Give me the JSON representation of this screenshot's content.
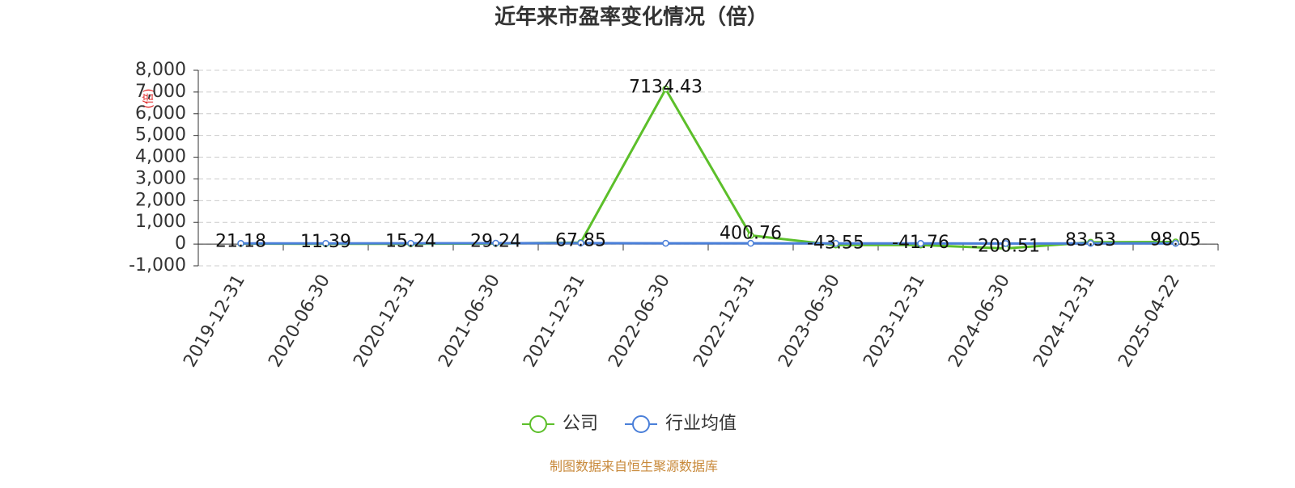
{
  "chart_data": {
    "type": "line",
    "title": "近年来市盈率变化情况（倍）",
    "y_label": "(倍)",
    "source": "制图数据来自恒生聚源数据库",
    "categories": [
      "2019-12-31",
      "2020-06-30",
      "2020-12-31",
      "2021-06-30",
      "2021-12-31",
      "2022-06-30",
      "2022-12-31",
      "2023-06-30",
      "2023-12-31",
      "2024-06-30",
      "2024-12-31",
      "2025-04-22"
    ],
    "series": [
      {
        "name": "公司",
        "color": "#5cbf2a",
        "values": [
          21.18,
          11.39,
          15.24,
          29.24,
          67.85,
          7134.43,
          400.76,
          -43.55,
          -41.76,
          -200.51,
          83.53,
          98.05
        ]
      },
      {
        "name": "行业均值",
        "color": "#4a7fd9",
        "values": [
          30,
          32,
          35,
          40,
          45,
          38,
          35,
          32,
          30,
          28,
          30,
          32
        ]
      }
    ],
    "ylim": [
      -1000,
      8000
    ],
    "yticks": [
      {
        "value": -1000,
        "label": "-1,000"
      },
      0,
      {
        "value": 1000,
        "label": "1,000"
      },
      {
        "value": 2000,
        "label": "2,000"
      },
      {
        "value": 3000,
        "label": "3,000"
      },
      {
        "value": 4000,
        "label": "4,000"
      },
      {
        "value": 5000,
        "label": "5,000"
      },
      {
        "value": 6000,
        "label": "6,000"
      },
      {
        "value": 7000,
        "label": "7,000"
      },
      {
        "value": 8000,
        "label": "8,000"
      }
    ],
    "grid": true,
    "legend": "bottom"
  }
}
